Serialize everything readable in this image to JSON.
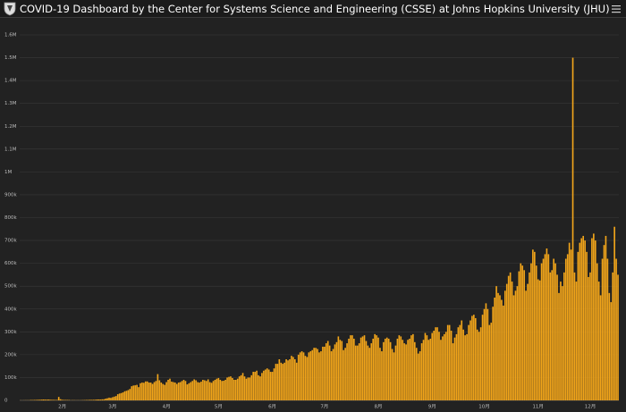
{
  "title": "COVID-19 Dashboard by the Center for Systems Science and Engineering (CSSE) at Johns Hopkins University (JHU)",
  "chart_data": {
    "type": "bar",
    "color": "#f2a51a",
    "grid": true,
    "ylim": [
      0,
      1600000
    ],
    "yticks": [
      0,
      {
        "value": 100000,
        "label": "100k"
      },
      {
        "value": 200000,
        "label": "200k"
      },
      {
        "value": 300000,
        "label": "300k"
      },
      {
        "value": 400000,
        "label": "400k"
      },
      {
        "value": 500000,
        "label": "500k"
      },
      {
        "value": 600000,
        "label": "600k"
      },
      {
        "value": 700000,
        "label": "700k"
      },
      {
        "value": 800000,
        "label": "800k"
      },
      {
        "value": 900000,
        "label": "900k"
      },
      {
        "value": 1000000,
        "label": "1M"
      },
      {
        "value": 1100000,
        "label": "1.1M"
      },
      {
        "value": 1200000,
        "label": "1.2M"
      },
      {
        "value": 1300000,
        "label": "1.3M"
      },
      {
        "value": 1400000,
        "label": "1.4M"
      },
      {
        "value": 1500000,
        "label": "1.5M"
      },
      {
        "value": 1600000,
        "label": "1.6M"
      }
    ],
    "categories": [
      null,
      null,
      null,
      null,
      null,
      null,
      null,
      null,
      null,
      null,
      null,
      null,
      null,
      null,
      null,
      null,
      null,
      null,
      null,
      null,
      null,
      null,
      null,
      null,
      "2月",
      null,
      null,
      null,
      null,
      null,
      null,
      null,
      null,
      null,
      null,
      null,
      null,
      null,
      null,
      null,
      null,
      null,
      null,
      null,
      null,
      null,
      null,
      null,
      null,
      null,
      null,
      null,
      null,
      "3月",
      null,
      null,
      null,
      null,
      null,
      null,
      null,
      null,
      null,
      null,
      null,
      null,
      null,
      null,
      null,
      null,
      null,
      null,
      null,
      null,
      null,
      null,
      null,
      null,
      null,
      null,
      null,
      null,
      null,
      null,
      "4月",
      null,
      null,
      null,
      null,
      null,
      null,
      null,
      null,
      null,
      null,
      null,
      null,
      null,
      null,
      null,
      null,
      null,
      null,
      null,
      null,
      null,
      null,
      null,
      null,
      null,
      null,
      null,
      null,
      null,
      "5月",
      null,
      null,
      null,
      null,
      null,
      null,
      null,
      null,
      null,
      null,
      null,
      null,
      null,
      null,
      null,
      null,
      null,
      null,
      null,
      null,
      null,
      null,
      null,
      null,
      null,
      null,
      null,
      null,
      null,
      null,
      "6月",
      null,
      null,
      null,
      null,
      null,
      null,
      null,
      null,
      null,
      null,
      null,
      null,
      null,
      null,
      null,
      null,
      null,
      null,
      null,
      null,
      null,
      null,
      null,
      null,
      null,
      null,
      null,
      null,
      null,
      "7月",
      null,
      null,
      null,
      null,
      null,
      null,
      null,
      null,
      null,
      null,
      null,
      null,
      null,
      null,
      null,
      null,
      null,
      null,
      null,
      null,
      null,
      null,
      null,
      null,
      null,
      null,
      null,
      null,
      null,
      null,
      "8月",
      null,
      null,
      null,
      null,
      null,
      null,
      null,
      null,
      null,
      null,
      null,
      null,
      null,
      null,
      null,
      null,
      null,
      null,
      null,
      null,
      null,
      null,
      null,
      null,
      null,
      null,
      null,
      null,
      null,
      null,
      "9月",
      null,
      null,
      null,
      null,
      null,
      null,
      null,
      null,
      null,
      null,
      null,
      null,
      null,
      null,
      null,
      null,
      null,
      null,
      null,
      null,
      null,
      null,
      null,
      null,
      null,
      null,
      null,
      null,
      null,
      "10月",
      null,
      null,
      null,
      null,
      null,
      null,
      null,
      null,
      null,
      null,
      null,
      null,
      null,
      null,
      null,
      null,
      null,
      null,
      null,
      null,
      null,
      null,
      null,
      null,
      null,
      null,
      null,
      null,
      null,
      null,
      "11月",
      null,
      null,
      null,
      null,
      null,
      null,
      null,
      null,
      null,
      null,
      null,
      null,
      null,
      null,
      null,
      null,
      null,
      null,
      null,
      null,
      null,
      null,
      null,
      null,
      null,
      null,
      null,
      null,
      null,
      "12月",
      null,
      null,
      null,
      null,
      null,
      null,
      null,
      null,
      null,
      null,
      null,
      null,
      null,
      null,
      null,
      null
    ],
    "values": [
      500,
      300,
      600,
      700,
      700,
      800,
      1800,
      1500,
      2000,
      2100,
      2600,
      2800,
      3200,
      3900,
      3700,
      3200,
      3900,
      3000,
      2600,
      2500,
      2100,
      2000,
      15000,
      5100,
      2600,
      2100,
      2000,
      1900,
      1700,
      600,
      1000,
      900,
      600,
      800,
      600,
      900,
      1200,
      1400,
      1900,
      1800,
      2500,
      2300,
      2600,
      2800,
      3800,
      4000,
      3800,
      4500,
      4800,
      7500,
      9300,
      12000,
      11000,
      14000,
      16500,
      19000,
      27000,
      30000,
      32000,
      35000,
      40000,
      42000,
      45000,
      50000,
      62000,
      65000,
      66000,
      68000,
      58000,
      75000,
      78000,
      77000,
      83000,
      83000,
      78000,
      78000,
      72000,
      80000,
      85000,
      115000,
      88000,
      78000,
      72000,
      68000,
      80000,
      90000,
      95000,
      82000,
      80000,
      78000,
      72000,
      78000,
      80000,
      85000,
      90000,
      85000,
      70000,
      75000,
      80000,
      85000,
      92000,
      88000,
      80000,
      78000,
      82000,
      90000,
      88000,
      85000,
      92000,
      80000,
      77000,
      85000,
      90000,
      95000,
      98000,
      90000,
      85000,
      86000,
      90000,
      100000,
      103000,
      105000,
      98000,
      90000,
      90000,
      95000,
      105000,
      110000,
      120000,
      105000,
      95000,
      100000,
      100000,
      110000,
      125000,
      125000,
      130000,
      110000,
      105000,
      120000,
      130000,
      135000,
      140000,
      135000,
      125000,
      125000,
      140000,
      160000,
      160000,
      180000,
      165000,
      160000,
      165000,
      180000,
      175000,
      180000,
      195000,
      190000,
      180000,
      165000,
      200000,
      210000,
      215000,
      210000,
      195000,
      190000,
      210000,
      215000,
      220000,
      230000,
      230000,
      225000,
      210000,
      215000,
      235000,
      235000,
      250000,
      260000,
      240000,
      215000,
      225000,
      245000,
      255000,
      280000,
      265000,
      260000,
      220000,
      230000,
      250000,
      270000,
      285000,
      285000,
      270000,
      240000,
      240000,
      250000,
      275000,
      280000,
      285000,
      260000,
      240000,
      230000,
      250000,
      270000,
      290000,
      285000,
      275000,
      230000,
      215000,
      255000,
      270000,
      275000,
      270000,
      255000,
      225000,
      210000,
      240000,
      270000,
      285000,
      280000,
      265000,
      250000,
      245000,
      265000,
      270000,
      285000,
      290000,
      255000,
      230000,
      205000,
      215000,
      250000,
      265000,
      295000,
      285000,
      265000,
      270000,
      295000,
      305000,
      320000,
      320000,
      300000,
      265000,
      280000,
      290000,
      300000,
      330000,
      330000,
      305000,
      250000,
      275000,
      290000,
      320000,
      330000,
      350000,
      310000,
      285000,
      290000,
      330000,
      350000,
      370000,
      375000,
      360000,
      310000,
      300000,
      320000,
      375000,
      400000,
      425000,
      400000,
      330000,
      340000,
      410000,
      450000,
      500000,
      470000,
      460000,
      440000,
      415000,
      480000,
      510000,
      545000,
      560000,
      520000,
      460000,
      480000,
      500000,
      565000,
      600000,
      590000,
      570000,
      480000,
      510000,
      560000,
      600000,
      660000,
      650000,
      590000,
      530000,
      525000,
      600000,
      620000,
      640000,
      665000,
      640000,
      560000,
      570000,
      620000,
      600000,
      550000,
      470000,
      520000,
      500000,
      560000,
      620000,
      640000,
      690000,
      660000,
      1500000,
      560000,
      520000,
      650000,
      690000,
      710000,
      720000,
      700000,
      650000,
      540000,
      560000,
      710000,
      730000,
      700000,
      600000,
      520000,
      460000,
      620000,
      680000,
      720000,
      620000,
      470000,
      430000,
      560000,
      760000,
      620000,
      550000
    ]
  }
}
